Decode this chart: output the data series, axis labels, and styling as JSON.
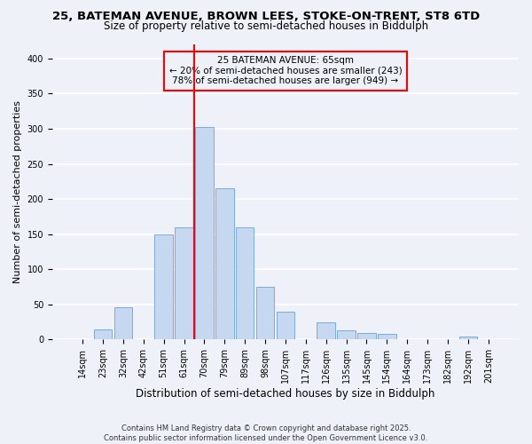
{
  "title1": "25, BATEMAN AVENUE, BROWN LEES, STOKE-ON-TRENT, ST8 6TD",
  "title2": "Size of property relative to semi-detached houses in Biddulph",
  "xlabel": "Distribution of semi-detached houses by size in Biddulph",
  "ylabel": "Number of semi-detached properties",
  "categories": [
    "14sqm",
    "23sqm",
    "32sqm",
    "42sqm",
    "51sqm",
    "61sqm",
    "70sqm",
    "79sqm",
    "89sqm",
    "98sqm",
    "107sqm",
    "117sqm",
    "126sqm",
    "135sqm",
    "145sqm",
    "154sqm",
    "164sqm",
    "173sqm",
    "182sqm",
    "192sqm",
    "201sqm"
  ],
  "values": [
    0,
    15,
    46,
    0,
    150,
    160,
    303,
    215,
    160,
    75,
    40,
    0,
    25,
    13,
    10,
    8,
    0,
    0,
    0,
    5,
    0
  ],
  "bar_color": "#c5d8f0",
  "bar_edge_color": "#7aabe0",
  "vline_color": "red",
  "vline_x": 5.5,
  "annotation_line1": "25 BATEMAN AVENUE: 65sqm",
  "annotation_line2": "← 20% of semi-detached houses are smaller (243)",
  "annotation_line3": "78% of semi-detached houses are larger (949) →",
  "box_edge_color": "red",
  "ylim": [
    0,
    420
  ],
  "yticks": [
    0,
    50,
    100,
    150,
    200,
    250,
    300,
    350,
    400
  ],
  "footer": "Contains HM Land Registry data © Crown copyright and database right 2025.\nContains public sector information licensed under the Open Government Licence v3.0.",
  "bg_color": "#eef2f8",
  "grid_color": "#ffffff",
  "title_fontsize": 9.5,
  "subtitle_fontsize": 8.5,
  "ylabel_fontsize": 8,
  "xlabel_fontsize": 8.5,
  "tick_fontsize": 7,
  "annot_fontsize": 7.5,
  "footer_fontsize": 6
}
